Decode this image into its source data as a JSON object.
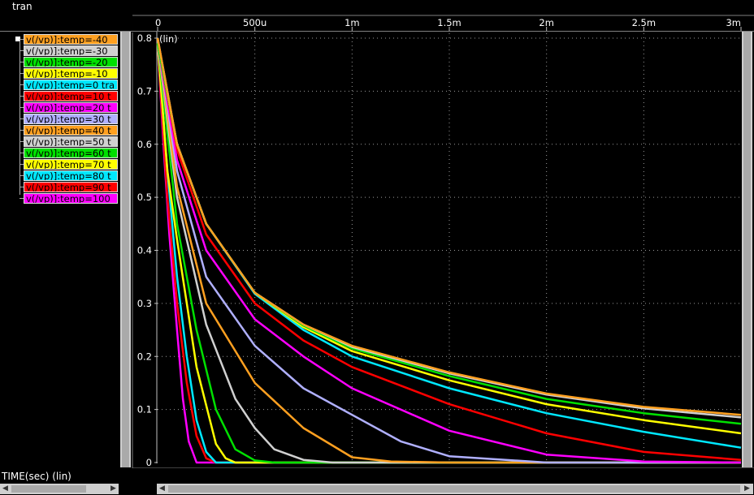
{
  "window": {
    "tab": "tran"
  },
  "legend": {
    "items": [
      {
        "label": "v(/vp)]:temp=-40",
        "color": "#ffa020"
      },
      {
        "label": "v(/vp)]:temp=-30",
        "color": "#d0d0d0"
      },
      {
        "label": "v(/vp)]:temp=-20",
        "color": "#00e000"
      },
      {
        "label": "v(/vp)]:temp=-10",
        "color": "#ffff00"
      },
      {
        "label": "v(/vp)]:temp=0 tra",
        "color": "#00e8ff"
      },
      {
        "label": "v(/vp)]:temp=10 t",
        "color": "#ff0000"
      },
      {
        "label": "v(/vp)]:temp=20 t",
        "color": "#ff00ff"
      },
      {
        "label": "v(/vp)]:temp=30 t",
        "color": "#b0b0ff"
      },
      {
        "label": "v(/vp)]:temp=40 t",
        "color": "#ffa020"
      },
      {
        "label": "v(/vp)]:temp=50 t",
        "color": "#d0d0d0"
      },
      {
        "label": "v(/vp)]:temp=60 t",
        "color": "#00e000"
      },
      {
        "label": "v(/vp)]:temp=70 t",
        "color": "#ffff00"
      },
      {
        "label": "v(/vp)]:temp=80 t",
        "color": "#00e8ff"
      },
      {
        "label": "v(/vp)]:temp=90 t",
        "color": "#ff0000"
      },
      {
        "label": "v(/vp)]:temp=100",
        "color": "#ff00ff"
      }
    ]
  },
  "xaxis_title": "TIME(sec) (lin)",
  "chart_data": {
    "type": "line",
    "ylabel": "(lin)",
    "xlabel": "TIME(sec) (lin)",
    "xlim": [
      0,
      0.003
    ],
    "ylim": [
      0,
      0.8
    ],
    "xticks": [
      0,
      0.0005,
      0.001,
      0.0015,
      0.002,
      0.0025,
      0.003
    ],
    "xtick_labels": [
      "0",
      "500u",
      "1m",
      "1.5m",
      "2m",
      "2.5m",
      "3m"
    ],
    "yticks": [
      0,
      0.1,
      0.2,
      0.3,
      0.4,
      0.5,
      0.6,
      0.7,
      0.8
    ],
    "ytick_labels": [
      "0",
      "0.1",
      "0.2",
      "0.3",
      "0.4",
      "0.5",
      "0.6",
      "0.7",
      "0.8"
    ],
    "grid": true,
    "legend_position": "left-panel",
    "series": [
      {
        "name": "v(/vp)]:temp=-40",
        "color": "#ffa020",
        "x": [
          0,
          0.0001,
          0.00025,
          0.0005,
          0.00075,
          0.001,
          0.0015,
          0.002,
          0.0025,
          0.003
        ],
        "y": [
          0.8,
          0.6,
          0.45,
          0.32,
          0.26,
          0.22,
          0.17,
          0.13,
          0.105,
          0.09
        ]
      },
      {
        "name": "v(/vp)]:temp=-30",
        "color": "#d0d0d0",
        "x": [
          0,
          0.0001,
          0.00025,
          0.0005,
          0.00075,
          0.001,
          0.0015,
          0.002,
          0.0025,
          0.003
        ],
        "y": [
          0.8,
          0.6,
          0.45,
          0.32,
          0.26,
          0.218,
          0.168,
          0.128,
          0.102,
          0.085
        ]
      },
      {
        "name": "v(/vp)]:temp=-20",
        "color": "#00e000",
        "x": [
          0,
          0.0001,
          0.00025,
          0.0005,
          0.00075,
          0.001,
          0.0015,
          0.002,
          0.0025,
          0.003
        ],
        "y": [
          0.79,
          0.6,
          0.45,
          0.32,
          0.258,
          0.215,
          0.163,
          0.12,
          0.093,
          0.073
        ]
      },
      {
        "name": "v(/vp)]:temp=-10",
        "color": "#ffff00",
        "x": [
          0,
          0.0001,
          0.00025,
          0.0005,
          0.00075,
          0.001,
          0.0015,
          0.002,
          0.0025,
          0.003
        ],
        "y": [
          0.79,
          0.6,
          0.45,
          0.32,
          0.255,
          0.21,
          0.155,
          0.11,
          0.08,
          0.055
        ]
      },
      {
        "name": "v(/vp)]:temp=0 tra",
        "color": "#00e8ff",
        "x": [
          0,
          0.0001,
          0.00025,
          0.0005,
          0.00075,
          0.001,
          0.0015,
          0.002,
          0.0025,
          0.003
        ],
        "y": [
          0.79,
          0.6,
          0.45,
          0.318,
          0.25,
          0.2,
          0.14,
          0.093,
          0.058,
          0.028
        ]
      },
      {
        "name": "v(/vp)]:temp=10 t",
        "color": "#ff0000",
        "x": [
          0,
          0.0001,
          0.00025,
          0.0005,
          0.00075,
          0.001,
          0.0015,
          0.002,
          0.0025,
          0.003
        ],
        "y": [
          0.79,
          0.59,
          0.43,
          0.3,
          0.23,
          0.18,
          0.11,
          0.055,
          0.02,
          0.005
        ]
      },
      {
        "name": "v(/vp)]:temp=20 t",
        "color": "#ff00ff",
        "x": [
          0,
          0.0001,
          0.00025,
          0.0005,
          0.00075,
          0.001,
          0.0015,
          0.002,
          0.0025,
          0.003
        ],
        "y": [
          0.79,
          0.57,
          0.4,
          0.27,
          0.2,
          0.14,
          0.06,
          0.015,
          0.002,
          0
        ]
      },
      {
        "name": "v(/vp)]:temp=30 t",
        "color": "#b0b0ff",
        "x": [
          0,
          0.0001,
          0.00025,
          0.0005,
          0.00075,
          0.001,
          0.00125,
          0.0015,
          0.002,
          0.003
        ],
        "y": [
          0.79,
          0.55,
          0.35,
          0.22,
          0.14,
          0.09,
          0.04,
          0.012,
          0,
          0
        ]
      },
      {
        "name": "v(/vp)]:temp=40 t",
        "color": "#ffa020",
        "x": [
          0,
          0.0001,
          0.00025,
          0.0005,
          0.00075,
          0.001,
          0.0012,
          0.0015,
          0.003
        ],
        "y": [
          0.79,
          0.52,
          0.3,
          0.15,
          0.065,
          0.01,
          0.002,
          0,
          0
        ]
      },
      {
        "name": "v(/vp)]:temp=50 t",
        "color": "#d0d0d0",
        "x": [
          0,
          0.0001,
          0.00025,
          0.0004,
          0.0005,
          0.0006,
          0.00075,
          0.0009,
          0.003
        ],
        "y": [
          0.79,
          0.5,
          0.26,
          0.12,
          0.065,
          0.025,
          0.005,
          0,
          0
        ]
      },
      {
        "name": "v(/vp)]:temp=60 t",
        "color": "#00e000",
        "x": [
          0,
          0.0001,
          0.0002,
          0.0003,
          0.0004,
          0.0005,
          0.0006,
          0.003
        ],
        "y": [
          0.79,
          0.45,
          0.25,
          0.1,
          0.025,
          0.004,
          0,
          0
        ]
      },
      {
        "name": "v(/vp)]:temp=70 t",
        "color": "#ffff00",
        "x": [
          0,
          5e-05,
          0.0001,
          0.0002,
          0.0003,
          0.00035,
          0.0004,
          0.003
        ],
        "y": [
          0.79,
          0.55,
          0.42,
          0.18,
          0.035,
          0.008,
          0,
          0
        ]
      },
      {
        "name": "v(/vp)]:temp=80 t",
        "color": "#00e8ff",
        "x": [
          0,
          5e-05,
          0.0001,
          0.00015,
          0.0002,
          0.00025,
          0.0003,
          0.003
        ],
        "y": [
          0.79,
          0.55,
          0.35,
          0.2,
          0.08,
          0.02,
          0,
          0
        ]
      },
      {
        "name": "v(/vp)]:temp=90 t",
        "color": "#ff0000",
        "x": [
          0,
          5e-05,
          0.0001,
          0.00015,
          0.0002,
          0.00025,
          0.0003,
          0.003
        ],
        "y": [
          0.79,
          0.5,
          0.3,
          0.15,
          0.05,
          0.008,
          0,
          0
        ]
      },
      {
        "name": "v(/vp)]:temp=100",
        "color": "#ff00ff",
        "x": [
          0,
          3e-05,
          6e-05,
          0.0001,
          0.00013,
          0.00016,
          0.0002,
          0.003
        ],
        "y": [
          0.79,
          0.6,
          0.43,
          0.25,
          0.12,
          0.04,
          0,
          0
        ]
      }
    ]
  }
}
